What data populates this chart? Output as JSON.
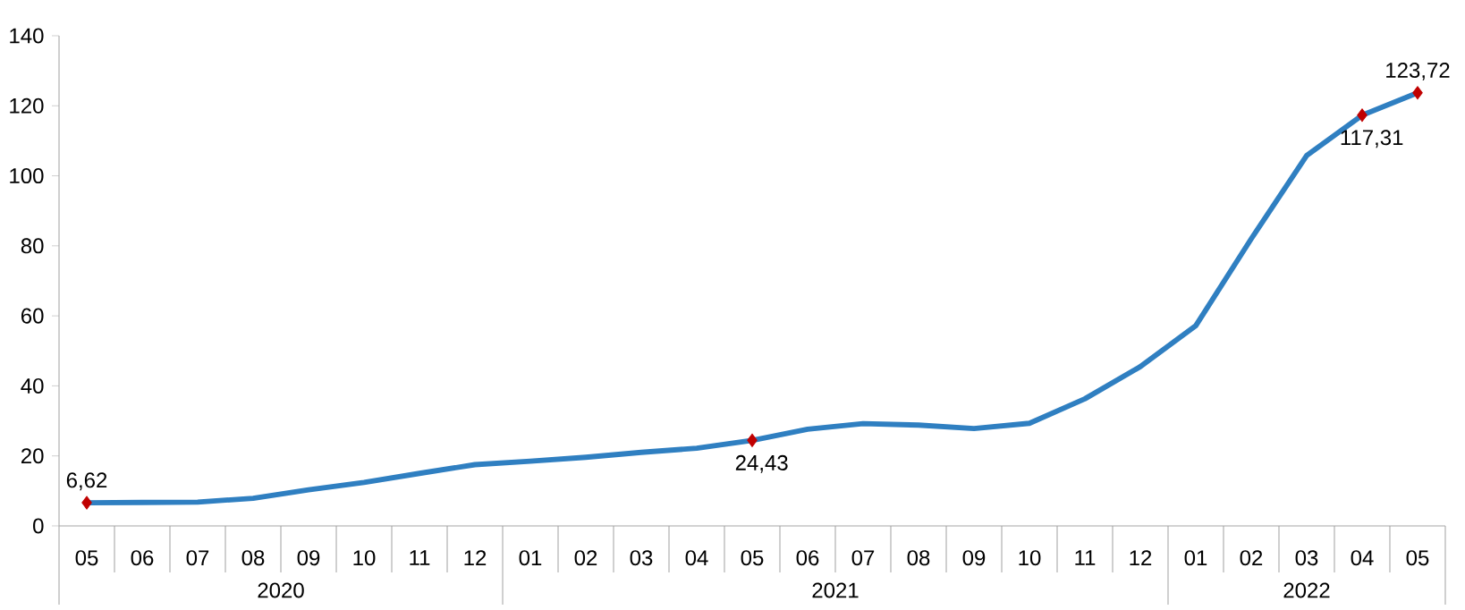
{
  "chart_data": {
    "type": "line",
    "categories": [
      "05",
      "06",
      "07",
      "08",
      "09",
      "10",
      "11",
      "12",
      "01",
      "02",
      "03",
      "04",
      "05",
      "06",
      "07",
      "08",
      "09",
      "10",
      "11",
      "12",
      "01",
      "02",
      "03",
      "04",
      "05"
    ],
    "values": [
      6.62,
      6.7,
      6.8,
      7.9,
      10.3,
      12.4,
      15,
      17.5,
      18.5,
      19.6,
      21,
      22.2,
      24.43,
      27.6,
      29.2,
      28.8,
      27.8,
      29.3,
      36.3,
      45.5,
      57.2,
      82,
      105.8,
      117.31,
      123.72
    ],
    "value_labels": [
      "6,62",
      null,
      null,
      null,
      null,
      null,
      null,
      null,
      null,
      null,
      null,
      null,
      "24,43",
      null,
      null,
      null,
      null,
      null,
      null,
      null,
      null,
      null,
      null,
      "117,31",
      "123,72"
    ],
    "color": "#2f7fc1",
    "ylim": [
      0,
      140
    ],
    "yticks": [
      0,
      20,
      40,
      60,
      80,
      100,
      120,
      140
    ],
    "annotations": [
      "2020",
      "2021",
      "2022"
    ]
  }
}
